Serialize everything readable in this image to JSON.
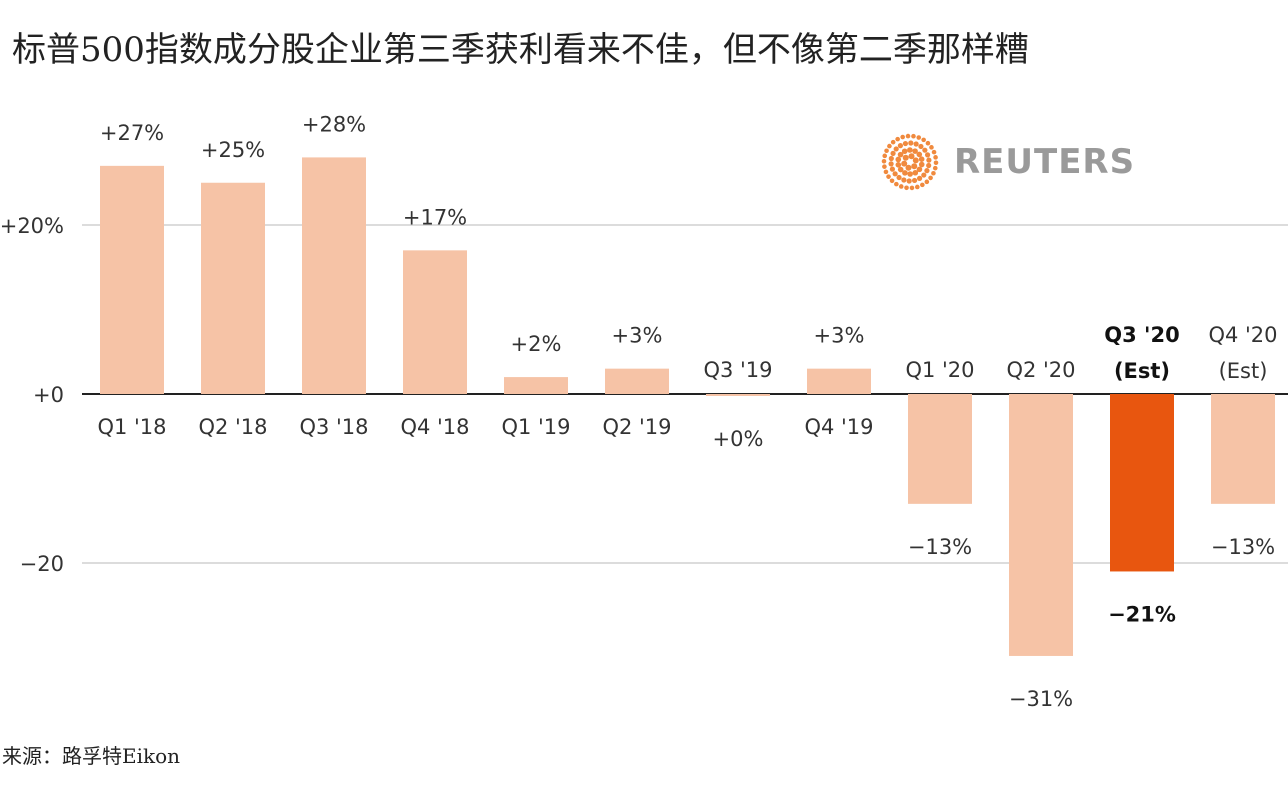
{
  "title": "标普500指数成分股企业第三季获利看来不佳，但不像第二季那样糟",
  "source": "来源：路孚特Eikon",
  "logo": {
    "text": "REUTERS"
  },
  "colors": {
    "bar": "#f6c3a6",
    "highlight": "#e8560f",
    "grid": "#c8c8c8",
    "axis": "#222222",
    "logo": "#f08a3e"
  },
  "chart_data": {
    "type": "bar",
    "categories": [
      "Q1 '18",
      "Q2 '18",
      "Q3 '18",
      "Q4 '18",
      "Q1 '19",
      "Q2 '19",
      "Q3 '19",
      "Q4 '19",
      "Q1 '20",
      "Q2 '20",
      "Q3 '20 (Est)",
      "Q4 '20 (Est)"
    ],
    "values": [
      27,
      25,
      28,
      17,
      2,
      3,
      0,
      3,
      -13,
      -31,
      -21,
      -13
    ],
    "data_labels": [
      "+27%",
      "+25%",
      "+28%",
      "+17%",
      "+2%",
      "+3%",
      "+0%",
      "+3%",
      "−13%",
      "−31%",
      "−21%",
      "−13%"
    ],
    "highlight": "Q3 '20 (Est)",
    "ylim": [
      -35,
      32
    ],
    "ytick_values": [
      20,
      0,
      -20
    ],
    "ytick_labels": [
      "+20%",
      "+0",
      "−20"
    ],
    "grid": true,
    "xlabel": "",
    "ylabel": ""
  }
}
